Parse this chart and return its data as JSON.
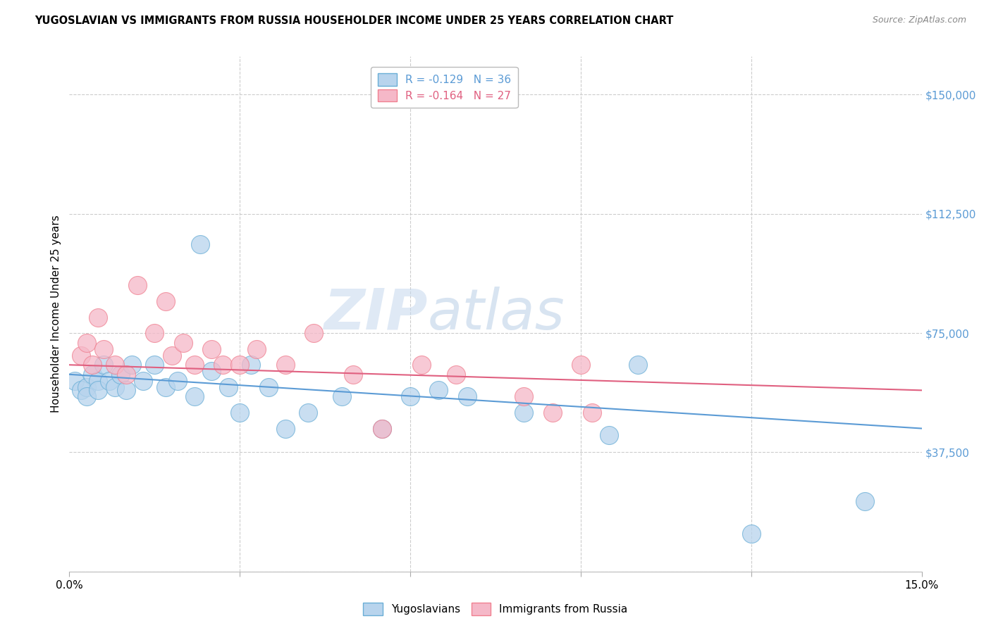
{
  "title": "YUGOSLAVIAN VS IMMIGRANTS FROM RUSSIA HOUSEHOLDER INCOME UNDER 25 YEARS CORRELATION CHART",
  "source": "Source: ZipAtlas.com",
  "ylabel": "Householder Income Under 25 years",
  "yticks": [
    0,
    37500,
    75000,
    112500,
    150000
  ],
  "ytick_labels": [
    "",
    "$37,500",
    "$75,000",
    "$112,500",
    "$150,000"
  ],
  "xlim": [
    0.0,
    0.15
  ],
  "ylim": [
    0,
    162000
  ],
  "watermark_zip": "ZIP",
  "watermark_atlas": "atlas",
  "legend_yug_text": "R = -0.129   N = 36",
  "legend_rus_text": "R = -0.164   N = 27",
  "legend_label_yug": "Yugoslavians",
  "legend_label_rus": "Immigrants from Russia",
  "yug_fill": "#b8d4ed",
  "rus_fill": "#f5b8c8",
  "yug_edge": "#6aaed6",
  "rus_edge": "#f08090",
  "line_yug": "#5b9bd5",
  "line_rus": "#e06080",
  "yug_x": [
    0.001,
    0.002,
    0.003,
    0.003,
    0.004,
    0.005,
    0.005,
    0.006,
    0.007,
    0.008,
    0.009,
    0.01,
    0.011,
    0.013,
    0.015,
    0.017,
    0.019,
    0.022,
    0.023,
    0.025,
    0.028,
    0.03,
    0.032,
    0.035,
    0.038,
    0.042,
    0.048,
    0.055,
    0.06,
    0.065,
    0.07,
    0.08,
    0.095,
    0.1,
    0.12,
    0.14
  ],
  "yug_y": [
    60000,
    57000,
    58000,
    55000,
    62000,
    60000,
    57000,
    65000,
    60000,
    58000,
    62000,
    57000,
    65000,
    60000,
    65000,
    58000,
    60000,
    55000,
    103000,
    63000,
    58000,
    50000,
    65000,
    58000,
    45000,
    50000,
    55000,
    45000,
    55000,
    57000,
    55000,
    50000,
    43000,
    65000,
    12000,
    22000
  ],
  "rus_x": [
    0.002,
    0.003,
    0.004,
    0.005,
    0.006,
    0.008,
    0.01,
    0.012,
    0.015,
    0.017,
    0.018,
    0.02,
    0.022,
    0.025,
    0.027,
    0.03,
    0.033,
    0.038,
    0.043,
    0.05,
    0.055,
    0.062,
    0.068,
    0.08,
    0.085,
    0.09,
    0.092
  ],
  "rus_y": [
    68000,
    72000,
    65000,
    80000,
    70000,
    65000,
    62000,
    90000,
    75000,
    85000,
    68000,
    72000,
    65000,
    70000,
    65000,
    65000,
    70000,
    65000,
    75000,
    62000,
    45000,
    65000,
    62000,
    55000,
    50000,
    65000,
    50000
  ]
}
